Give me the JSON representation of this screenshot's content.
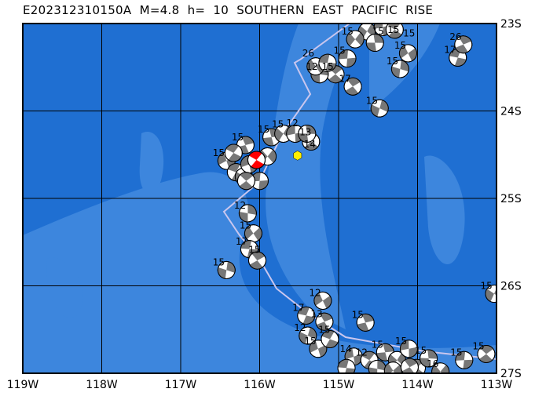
{
  "title": "E202312310150A  M=4.8  h=  10  SOUTHERN  EAST  PACIFIC  RISE",
  "map": {
    "lon_range": [
      -119,
      -113
    ],
    "lat_range": [
      -27,
      -23
    ],
    "lon_labels": [
      "119W",
      "118W",
      "117W",
      "116W",
      "115W",
      "114W",
      "113W"
    ],
    "lat_labels": [
      "23S",
      "24S",
      "25S",
      "26S",
      "27S"
    ],
    "colors": {
      "deep_ocean": "#1f6fd2",
      "shallow_ocean": "#3d86dd",
      "plate_boundary": "#c9c6ee",
      "beachball_gray": "#777777",
      "highlight": "#ff0000",
      "epicenter": "#ffee00"
    },
    "main_event": {
      "lon": -115.52,
      "lat": -24.51,
      "icon": "yellow-hexagon"
    },
    "main_mechanism": {
      "lon": -116.04,
      "lat": -24.56
    },
    "events": [
      {
        "lon": -114.64,
        "lat": -23.09,
        "depth": "15"
      },
      {
        "lon": -114.44,
        "lat": -23.04,
        "depth": "15"
      },
      {
        "lon": -114.29,
        "lat": -23.07,
        "depth": "15"
      },
      {
        "lon": -114.54,
        "lat": -23.22,
        "depth": ""
      },
      {
        "lon": -114.79,
        "lat": -23.18,
        "depth": "15"
      },
      {
        "lon": -114.89,
        "lat": -23.4,
        "depth": "15"
      },
      {
        "lon": -115.04,
        "lat": -23.58,
        "depth": "15"
      },
      {
        "lon": -115.24,
        "lat": -23.58,
        "depth": "12"
      },
      {
        "lon": -115.29,
        "lat": -23.49,
        "depth": "26"
      },
      {
        "lon": -115.14,
        "lat": -23.45,
        "depth": ""
      },
      {
        "lon": -114.82,
        "lat": -23.72,
        "depth": "17"
      },
      {
        "lon": -114.22,
        "lat": -23.52,
        "depth": "15"
      },
      {
        "lon": -114.12,
        "lat": -23.34,
        "depth": "15"
      },
      {
        "lon": -113.49,
        "lat": -23.39,
        "depth": "17"
      },
      {
        "lon": -113.42,
        "lat": -23.24,
        "depth": "26"
      },
      {
        "lon": -114.48,
        "lat": -23.97,
        "depth": "15"
      },
      {
        "lon": -116.42,
        "lat": -24.57,
        "depth": "15"
      },
      {
        "lon": -116.3,
        "lat": -24.7,
        "depth": ""
      },
      {
        "lon": -116.18,
        "lat": -24.39,
        "depth": "15"
      },
      {
        "lon": -116.2,
        "lat": -24.75,
        "depth": ""
      },
      {
        "lon": -116.13,
        "lat": -24.61,
        "depth": ""
      },
      {
        "lon": -116.33,
        "lat": -24.48,
        "depth": ""
      },
      {
        "lon": -115.85,
        "lat": -24.3,
        "depth": "15"
      },
      {
        "lon": -115.7,
        "lat": -24.26,
        "depth": "15"
      },
      {
        "lon": -115.55,
        "lat": -24.26,
        "depth": "12"
      },
      {
        "lon": -115.35,
        "lat": -24.35,
        "depth": "13"
      },
      {
        "lon": -115.4,
        "lat": -24.26,
        "depth": "14"
      },
      {
        "lon": -115.9,
        "lat": -24.52,
        "depth": ""
      },
      {
        "lon": -116.0,
        "lat": -24.8,
        "depth": ""
      },
      {
        "lon": -116.17,
        "lat": -24.8,
        "depth": ""
      },
      {
        "lon": -116.15,
        "lat": -25.17,
        "depth": "12"
      },
      {
        "lon": -116.08,
        "lat": -25.4,
        "depth": "15"
      },
      {
        "lon": -116.13,
        "lat": -25.58,
        "depth": "17"
      },
      {
        "lon": -116.03,
        "lat": -25.71,
        "depth": "15"
      },
      {
        "lon": -116.42,
        "lat": -25.82,
        "depth": "15"
      },
      {
        "lon": -115.2,
        "lat": -26.17,
        "depth": "12"
      },
      {
        "lon": -115.41,
        "lat": -26.34,
        "depth": "17"
      },
      {
        "lon": -115.18,
        "lat": -26.41,
        "depth": "13"
      },
      {
        "lon": -115.39,
        "lat": -26.57,
        "depth": "12"
      },
      {
        "lon": -115.26,
        "lat": -26.72,
        "depth": "15"
      },
      {
        "lon": -115.11,
        "lat": -26.61,
        "depth": "15"
      },
      {
        "lon": -114.66,
        "lat": -26.42,
        "depth": "15"
      },
      {
        "lon": -113.03,
        "lat": -26.09,
        "depth": "15"
      },
      {
        "lon": -114.81,
        "lat": -26.81,
        "depth": "14"
      },
      {
        "lon": -114.61,
        "lat": -26.85,
        "depth": "12"
      },
      {
        "lon": -114.41,
        "lat": -26.76,
        "depth": "15"
      },
      {
        "lon": -114.26,
        "lat": -26.85,
        "depth": ""
      },
      {
        "lon": -114.11,
        "lat": -26.72,
        "depth": "15"
      },
      {
        "lon": -114.01,
        "lat": -26.94,
        "depth": ""
      },
      {
        "lon": -113.86,
        "lat": -26.83,
        "depth": "15"
      },
      {
        "lon": -113.71,
        "lat": -26.98,
        "depth": "16"
      },
      {
        "lon": -113.41,
        "lat": -26.85,
        "depth": "15"
      },
      {
        "lon": -113.13,
        "lat": -26.78,
        "depth": "15"
      },
      {
        "lon": -114.51,
        "lat": -26.95,
        "depth": ""
      },
      {
        "lon": -114.31,
        "lat": -26.97,
        "depth": ""
      },
      {
        "lon": -114.9,
        "lat": -26.94,
        "depth": ""
      },
      {
        "lon": -114.1,
        "lat": -26.93,
        "depth": ""
      }
    ]
  }
}
